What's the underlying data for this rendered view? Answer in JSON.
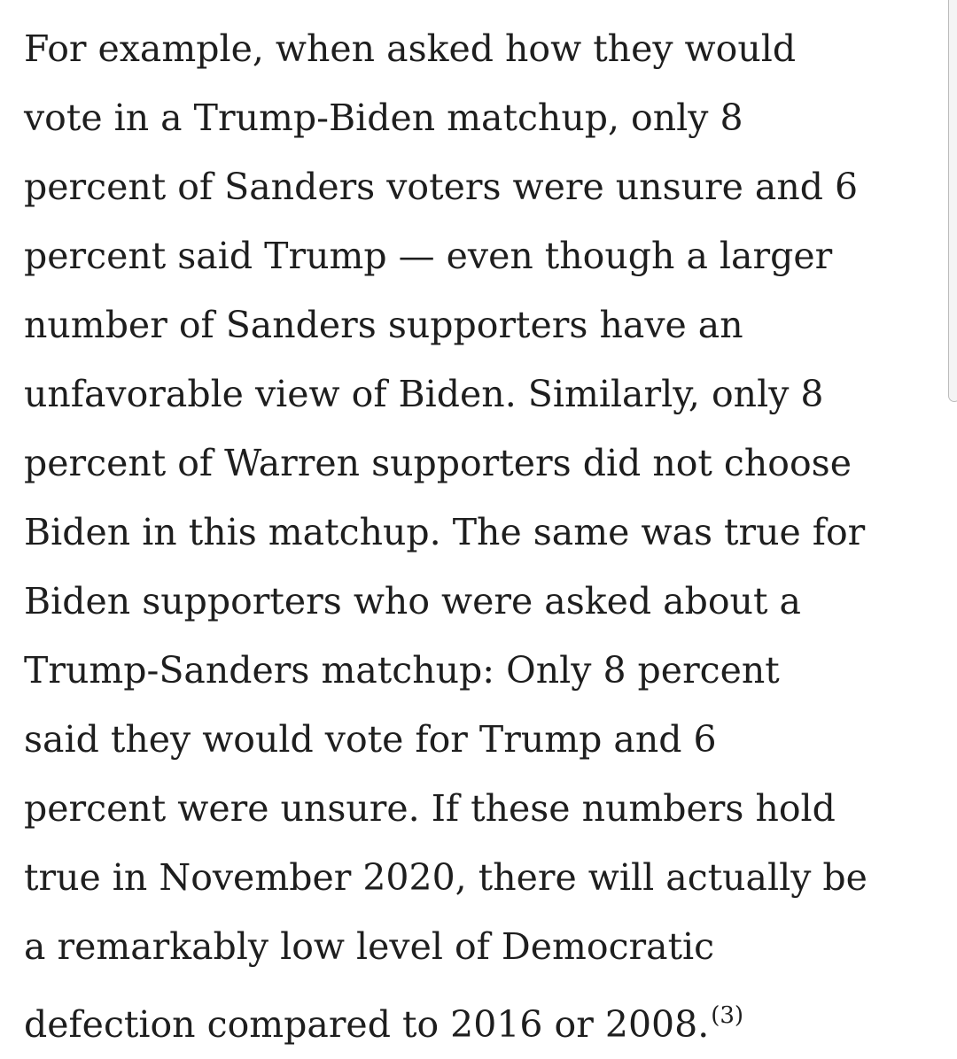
{
  "paragraph": {
    "lines": [
      "For example, when asked how they would",
      "vote in a Trump-Biden matchup, only 8",
      "percent of Sanders voters were unsure and 6",
      "percent said Trump — even though a larger",
      "number of Sanders supporters have an",
      "unfavorable view of Biden. Similarly, only 8",
      "percent of Warren supporters did not choose",
      "Biden in this matchup. The same was true for",
      "Biden supporters who were asked about a",
      "Trump-Sanders matchup: Only 8 percent",
      "said they would vote for Trump and 6",
      "percent were unsure. If these numbers hold",
      "true in November 2020, there will actually be",
      "a remarkably low level of Democratic",
      "defection compared to 2016 or 2008."
    ],
    "footnote": "(3)"
  }
}
